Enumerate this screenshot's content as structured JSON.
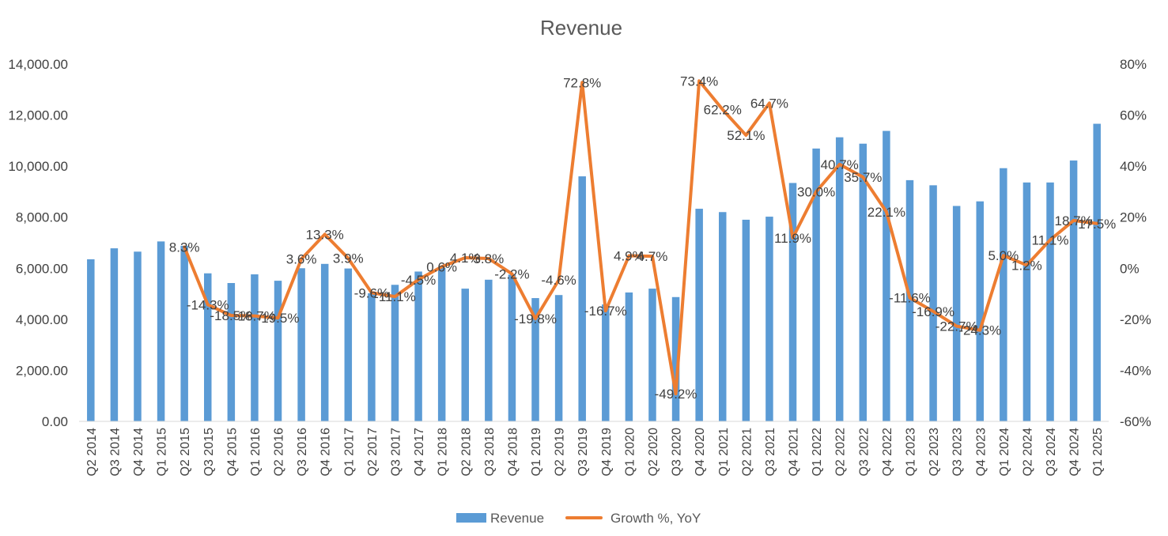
{
  "chart_data": {
    "type": "bar",
    "title": "Revenue",
    "xlabel": "",
    "ylabel": "",
    "ylim": [
      0,
      14000
    ],
    "y2lim": [
      -60,
      80
    ],
    "y_ticks": [
      "0.00",
      "2,000.00",
      "4,000.00",
      "6,000.00",
      "8,000.00",
      "10,000.00",
      "12,000.00",
      "14,000.00"
    ],
    "y2_ticks": [
      "-60%",
      "-40%",
      "-20%",
      "0%",
      "20%",
      "40%",
      "60%",
      "80%"
    ],
    "grid": false,
    "legend_position": "bottom",
    "categories": [
      "Q2 2014",
      "Q3 2014",
      "Q4 2014",
      "Q1 2015",
      "Q2 2015",
      "Q3 2015",
      "Q4 2015",
      "Q1 2016",
      "Q2 2016",
      "Q3 2016",
      "Q4 2016",
      "Q1 2017",
      "Q2 2017",
      "Q3 2017",
      "Q4 2017",
      "Q1 2018",
      "Q2 2018",
      "Q3 2018",
      "Q4 2018",
      "Q1 2019",
      "Q2 2019",
      "Q3 2019",
      "Q4 2019",
      "Q1 2020",
      "Q2 2020",
      "Q3 2020",
      "Q4 2020",
      "Q1 2021",
      "Q2 2021",
      "Q3 2021",
      "Q4 2021",
      "Q1 2022",
      "Q2 2022",
      "Q3 2022",
      "Q4 2022",
      "Q1 2023",
      "Q2 2023",
      "Q3 2023",
      "Q4 2023",
      "Q1 2024",
      "Q2 2024",
      "Q3 2024",
      "Q4 2024",
      "Q1 2025"
    ],
    "series": [
      {
        "name": "Revenue",
        "type": "bar",
        "axis": "left",
        "color": "#5B9BD5",
        "values": [
          6350,
          6780,
          6650,
          7050,
          6880,
          5800,
          5420,
          5760,
          5510,
          6000,
          6170,
          5990,
          5020,
          5350,
          5870,
          6020,
          5200,
          5550,
          5750,
          4830,
          4950,
          9600,
          4580,
          5050,
          5200,
          4870,
          8330,
          8200,
          7900,
          8020,
          9340,
          10690,
          11130,
          10880,
          11380,
          9450,
          9250,
          8440,
          8620,
          9920,
          9360,
          9360,
          10220,
          11660
        ]
      },
      {
        "name": "Growth %, YoY",
        "type": "line",
        "axis": "right",
        "color": "#ED7D31",
        "values": [
          null,
          null,
          null,
          null,
          8.3,
          -14.3,
          -18.5,
          -18.7,
          -19.5,
          3.6,
          13.3,
          3.9,
          -9.6,
          -11.1,
          -4.5,
          0.6,
          4.1,
          3.8,
          -2.2,
          -19.8,
          -4.6,
          72.8,
          -16.7,
          4.9,
          4.7,
          -49.2,
          73.4,
          62.2,
          52.1,
          64.7,
          11.9,
          30.0,
          40.7,
          35.7,
          22.1,
          -11.6,
          -16.9,
          -22.7,
          -24.3,
          5.0,
          1.2,
          11.1,
          18.7,
          17.5
        ],
        "labels": [
          "",
          "",
          "",
          "",
          "8.3%",
          "-14.3%",
          "-18.5%",
          "-18.7%",
          "-19.5%",
          "3.6%",
          "13.3%",
          "3.9%",
          "-9.6%",
          "-11.1%",
          "-4.5%",
          "0.6%",
          "4.1%",
          "3.8%",
          "-2.2%",
          "-19.8%",
          "-4.6%",
          "72.8%",
          "-16.7%",
          "4.9%",
          "4.7%",
          "-49.2%",
          "73.4%",
          "62.2%",
          "52.1%",
          "64.7%",
          "11.9%",
          "30.0%",
          "40.7%",
          "35.7%",
          "22.1%",
          "-11.6%",
          "-16.9%",
          "-22.7%",
          "-24.3%",
          "5.0%",
          "1.2%",
          "11.1%",
          "18.7%",
          "17.5%"
        ]
      }
    ]
  }
}
